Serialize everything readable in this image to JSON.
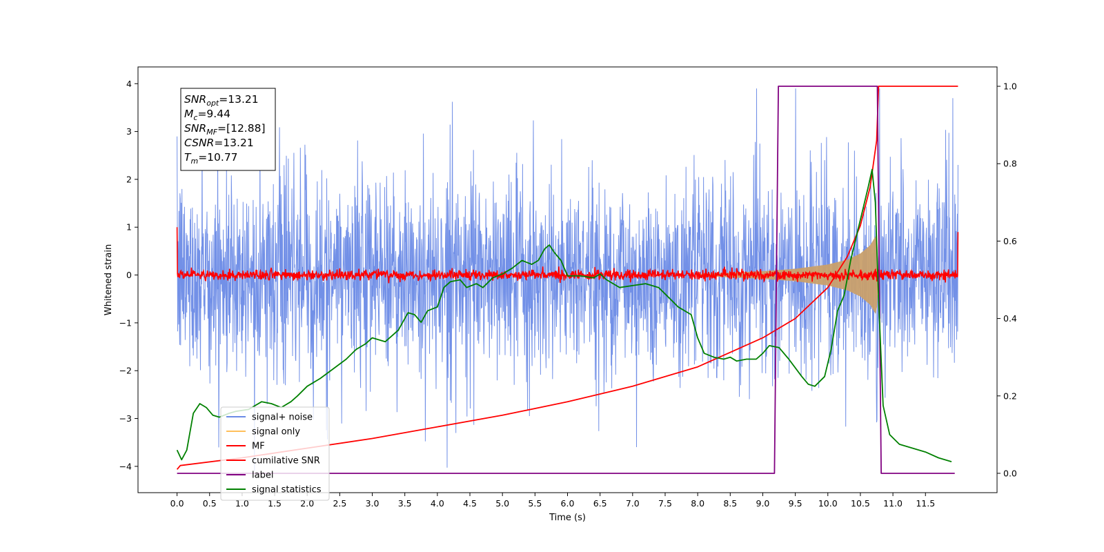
{
  "chart_data": {
    "type": "line",
    "xlabel": "Time (s)",
    "ylabel": "Whitened strain",
    "xlim": [
      -0.6,
      12.6
    ],
    "ylim": [
      -4.55,
      4.35
    ],
    "y2lim": [
      -0.05,
      1.05
    ],
    "xticks": [
      0.0,
      0.5,
      1.0,
      1.5,
      2.0,
      2.5,
      3.0,
      3.5,
      4.0,
      4.5,
      5.0,
      5.5,
      6.0,
      6.5,
      7.0,
      7.5,
      8.0,
      8.5,
      9.0,
      9.5,
      10.0,
      10.5,
      11.0,
      11.5
    ],
    "xtick_labels": [
      "0.0",
      "0.5",
      "1.0",
      "1.5",
      "2.0",
      "2.5",
      "3.0",
      "3.5",
      "4.0",
      "4.5",
      "5.0",
      "5.5",
      "6.0",
      "6.5",
      "7.0",
      "7.5",
      "8.0",
      "8.5",
      "9.0",
      "9.5",
      "10.0",
      "10.5",
      "11.0",
      "11.5"
    ],
    "yticks": [
      -4,
      -3,
      -2,
      -1,
      0,
      1,
      2,
      3,
      4
    ],
    "ytick_labels": [
      "−4",
      "−3",
      "−2",
      "−1",
      "0",
      "1",
      "2",
      "3",
      "4"
    ],
    "y2ticks": [
      0.0,
      0.2,
      0.4,
      0.6,
      0.8,
      1.0
    ],
    "y2tick_labels": [
      "0.0",
      "0.2",
      "0.4",
      "0.6",
      "0.8",
      "1.0"
    ],
    "grid": false,
    "legend_position": "lower-left",
    "legend": [
      {
        "label": "signal+ noise",
        "color": "#6a8ae6"
      },
      {
        "label": "signal only",
        "color": "#ffbf5a"
      },
      {
        "label": "MF",
        "color": "#ff0000"
      },
      {
        "label": "cumilative SNR",
        "color": "#ff0000"
      },
      {
        "label": "label",
        "color": "#800080"
      },
      {
        "label": "signal statistics",
        "color": "#008000"
      }
    ],
    "annotation": {
      "lines": [
        {
          "label": "SNR",
          "sub": "opt",
          "value": "=13.21"
        },
        {
          "label": "M",
          "sub": "c",
          "value": "=9.44"
        },
        {
          "label": "SNR",
          "sub": "MF",
          "value": "=[12.88]"
        },
        {
          "label": "CSNR",
          "sub": "",
          "value": "=13.21"
        },
        {
          "label": "T",
          "sub": "m",
          "value": "=10.77"
        }
      ]
    },
    "series": [
      {
        "name": "signal+ noise",
        "axis": "left",
        "color": "#6a8ae6",
        "kind": "noise",
        "x_range": [
          0.0,
          12.0
        ],
        "typical_range": [
          -2.4,
          2.4
        ],
        "extreme_range": [
          -4.1,
          3.9
        ]
      },
      {
        "name": "signal only",
        "axis": "left",
        "color": "#c9a06c",
        "kind": "chirp-envelope",
        "x": [
          8.0,
          8.5,
          9.0,
          9.5,
          10.0,
          10.3,
          10.5,
          10.65,
          10.75,
          10.78
        ],
        "amplitude": [
          0.02,
          0.05,
          0.08,
          0.13,
          0.22,
          0.32,
          0.45,
          0.62,
          0.85,
          0.0
        ]
      },
      {
        "name": "MF",
        "axis": "left",
        "color": "#ff0000",
        "kind": "noise",
        "x_range": [
          0.0,
          12.0
        ],
        "typical_range": [
          -0.12,
          0.12
        ],
        "edge_values": {
          "start": 1.0,
          "end": 0.9
        }
      },
      {
        "name": "cumilative SNR",
        "axis": "right",
        "color": "#ff0000",
        "x": [
          0.0,
          0.05,
          1.0,
          2.0,
          3.0,
          4.0,
          5.0,
          6.0,
          7.0,
          8.0,
          9.0,
          9.5,
          10.0,
          10.3,
          10.5,
          10.65,
          10.75,
          10.78,
          12.0
        ],
        "values": [
          0.01,
          0.02,
          0.04,
          0.065,
          0.09,
          0.12,
          0.15,
          0.185,
          0.225,
          0.275,
          0.35,
          0.4,
          0.48,
          0.56,
          0.64,
          0.74,
          0.86,
          1.0,
          1.0
        ]
      },
      {
        "name": "label",
        "axis": "right",
        "color": "#800080",
        "x": [
          0.0,
          9.18,
          9.24,
          10.76,
          10.82,
          11.95
        ],
        "values": [
          0.0,
          0.0,
          1.0,
          1.0,
          0.0,
          0.0
        ]
      },
      {
        "name": "signal statistics",
        "axis": "right",
        "color": "#008000",
        "x": [
          0.0,
          0.07,
          0.15,
          0.25,
          0.35,
          0.45,
          0.55,
          0.65,
          0.8,
          0.9,
          1.1,
          1.3,
          1.45,
          1.6,
          1.75,
          1.85,
          2.0,
          2.2,
          2.4,
          2.6,
          2.75,
          2.9,
          3.0,
          3.2,
          3.4,
          3.55,
          3.65,
          3.75,
          3.85,
          4.0,
          4.1,
          4.2,
          4.35,
          4.45,
          4.6,
          4.7,
          4.85,
          5.0,
          5.15,
          5.3,
          5.45,
          5.55,
          5.65,
          5.72,
          5.8,
          5.9,
          5.95,
          6.0,
          6.2,
          6.4,
          6.5,
          6.6,
          6.8,
          7.0,
          7.2,
          7.4,
          7.55,
          7.7,
          7.9,
          8.0,
          8.1,
          8.25,
          8.4,
          8.5,
          8.6,
          8.75,
          8.9,
          9.0,
          9.1,
          9.25,
          9.4,
          9.6,
          9.7,
          9.8,
          9.95,
          10.05,
          10.15,
          10.25,
          10.35,
          10.45,
          10.55,
          10.62,
          10.68,
          10.73,
          10.78,
          10.85,
          10.95,
          11.1,
          11.3,
          11.5,
          11.7,
          11.9
        ],
        "values": [
          0.06,
          0.035,
          0.06,
          0.155,
          0.18,
          0.17,
          0.15,
          0.145,
          0.155,
          0.16,
          0.165,
          0.185,
          0.18,
          0.17,
          0.185,
          0.2,
          0.225,
          0.245,
          0.27,
          0.295,
          0.32,
          0.335,
          0.35,
          0.34,
          0.37,
          0.415,
          0.41,
          0.39,
          0.42,
          0.43,
          0.48,
          0.495,
          0.5,
          0.48,
          0.49,
          0.48,
          0.505,
          0.515,
          0.53,
          0.55,
          0.54,
          0.55,
          0.58,
          0.59,
          0.57,
          0.55,
          0.53,
          0.51,
          0.51,
          0.505,
          0.515,
          0.5,
          0.48,
          0.485,
          0.49,
          0.48,
          0.455,
          0.43,
          0.41,
          0.35,
          0.31,
          0.3,
          0.295,
          0.3,
          0.29,
          0.295,
          0.295,
          0.31,
          0.33,
          0.325,
          0.295,
          0.25,
          0.23,
          0.225,
          0.25,
          0.32,
          0.42,
          0.46,
          0.55,
          0.62,
          0.69,
          0.74,
          0.785,
          0.7,
          0.45,
          0.175,
          0.1,
          0.075,
          0.065,
          0.055,
          0.04,
          0.03
        ]
      }
    ]
  }
}
